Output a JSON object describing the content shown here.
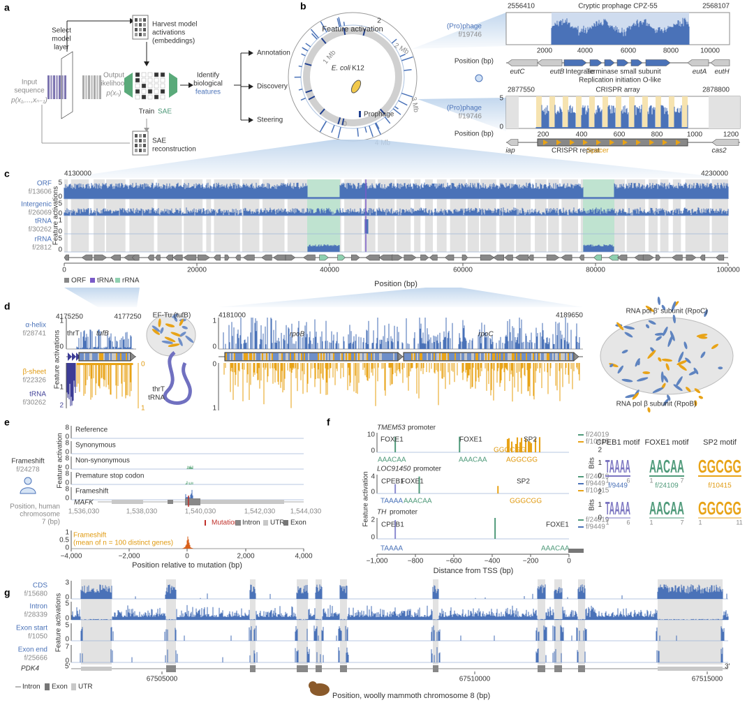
{
  "a": {
    "label": "a",
    "select_layer": [
      "Select",
      "model",
      "layer"
    ],
    "harvest": [
      "Harvest model",
      "activations",
      "(embeddings)"
    ],
    "input": [
      "Input",
      "sequence"
    ],
    "input_formula": "p(x₁,...,xₙ₋₁)",
    "output": [
      "Output",
      "likelihood"
    ],
    "output_formula": "p(xₙ)",
    "train": "Train",
    "sae": "SAE",
    "identify": [
      "Identify",
      "biological",
      "features"
    ],
    "outputs": [
      "Annotation",
      "Discovery",
      "Steering"
    ],
    "reconstruction": [
      "SAE",
      "reconstruction"
    ]
  },
  "b": {
    "label": "b",
    "circle_title": "Feature activation",
    "circle_max": "2",
    "circle_min": "0",
    "genome_ticks": [
      "1 Mb",
      "2 Mb",
      "3 Mb",
      "4 Mb"
    ],
    "organism": "E. coli",
    "strain": "K12",
    "prophage_legend": "Prophage",
    "top": {
      "feature": "(Pro)phage",
      "feature_id": "f/19746",
      "start": "2556410",
      "end": "2568107",
      "title": "Cryptic prophage CPZ-55",
      "xticks": [
        "2000",
        "4000",
        "6000",
        "8000",
        "10000"
      ],
      "xlabel": "Position (bp)",
      "genes": [
        "eutC",
        "eutB",
        "Integrase",
        "Terminase small subunit",
        "Replication initiation O-like",
        "eutA",
        "eutH"
      ]
    },
    "bottom": {
      "feature": "(Pro)phage",
      "feature_id": "f/19746",
      "start": "2877550",
      "end": "2878800",
      "title": "CRISPR array",
      "yticks": [
        "5",
        "0"
      ],
      "xticks": [
        "200",
        "400",
        "600",
        "800",
        "1000",
        "1200"
      ],
      "xlabel": "Position (bp)",
      "genes": [
        "iap",
        "CRISPR repeat",
        "Spacer",
        "cas2"
      ]
    }
  },
  "c": {
    "label": "c",
    "start": "4130000",
    "end": "4230000",
    "ylabel": "Feature activations",
    "tracks": [
      {
        "name": "ORF",
        "id": "f/13606",
        "ticks": [
          "5",
          "0"
        ]
      },
      {
        "name": "Intergenic",
        "id": "f/26069",
        "ticks": [
          "5",
          "0"
        ]
      },
      {
        "name": "tRNA",
        "id": "f/30262",
        "ticks": [
          "1",
          "0"
        ]
      },
      {
        "name": "rRNA",
        "id": "f/2812",
        "ticks": [
          "5",
          "0"
        ]
      }
    ],
    "xticks": [
      "0",
      "20000",
      "40000",
      "60000",
      "80000",
      "100000"
    ],
    "xlabel": "Position (bp)",
    "legend": [
      "ORF",
      "tRNA",
      "rRNA"
    ]
  },
  "d": {
    "label": "d",
    "ylabel": "Feature activations",
    "left": {
      "start": "4175250",
      "end": "4177250",
      "genes": [
        "thrT",
        "tufB"
      ],
      "tracks": [
        {
          "name": "α-helix",
          "id": "f/28741"
        },
        {
          "name": "β-sheet",
          "id": "f/22326"
        },
        {
          "name": "tRNA",
          "id": "f/30262"
        }
      ],
      "ticks_top": [
        "1",
        "0"
      ],
      "ticks_trna": [
        "1",
        "2"
      ],
      "ticks_sheet": [
        "0",
        "1"
      ]
    },
    "structure": {
      "title": "EF-Tu (tufB)",
      "rna": [
        "thrT",
        "tRNA"
      ]
    },
    "middle": {
      "start": "4181000",
      "end": "4189650",
      "genes": [
        "rpoB",
        "rpoC"
      ],
      "ticks_top": [
        "1",
        "0"
      ],
      "ticks_bottom": [
        "0",
        "1"
      ]
    },
    "right": {
      "top": "RNA pol β′ subunit (RpoC)",
      "bottom": "RNA pol β subunit (RpoB)"
    }
  },
  "e": {
    "label": "e",
    "ylabel": "Feature activation",
    "rows": [
      "Reference",
      "Synonymous",
      "Non-synonymous",
      "Premature stop codon",
      "Frameshift"
    ],
    "row_ticks": [
      "8",
      "0"
    ],
    "feature": "Frameshift",
    "feature_id": "f/24278",
    "position": [
      "Position, human",
      "chromosome",
      "7 (bp)"
    ],
    "gene": "MAFK",
    "xticks": [
      "1,536,030",
      "1,538,030",
      "1,540,030",
      "1,542,030",
      "1,544,030"
    ],
    "legend": [
      "Mutation",
      "Intron",
      "UTR",
      "Exon"
    ],
    "mean": {
      "title": "Frameshift",
      "subtitle": "(mean of n = 100 distinct genes)",
      "ticks": [
        "1",
        "0.5",
        "0"
      ],
      "xticks": [
        "−4,000",
        "−2,000",
        "0",
        "2,000",
        "4,000"
      ],
      "xlabel": "Position relative to mutation (bp)"
    }
  },
  "f": {
    "label": "f",
    "ylabel": "Feature activation",
    "promoters": [
      {
        "gene": "TMEM53",
        "suffix": "promoter",
        "ticks": [
          "10",
          "0"
        ],
        "labels": [
          "FOXE1",
          "FOXE1",
          "SP2"
        ],
        "motifs": [
          "AAACAA",
          "AAACAA",
          "AGGCGG",
          "GGGCGG"
        ],
        "legend": [
          "f/24019",
          "f/10415"
        ]
      },
      {
        "gene": "LOC91450",
        "suffix": "promoter",
        "ticks": [
          "4",
          "0"
        ],
        "labels": [
          "CPEB1",
          "FOXE1",
          "SP2"
        ],
        "motifs": [
          "TAAAA",
          "AAACAA",
          "GGGCGG"
        ],
        "legend": [
          "f/24019",
          "f/9449",
          "f/10415"
        ]
      },
      {
        "gene": "TH",
        "suffix": "promoter",
        "ticks": [
          "2",
          "0"
        ],
        "labels": [
          "CPEB1",
          "FOXE1"
        ],
        "motifs": [
          "TAAAA",
          "AAACAA"
        ],
        "legend": [
          "f/24019",
          "f/9449"
        ]
      }
    ],
    "xticks": [
      "−1,000",
      "−800",
      "−600",
      "−400",
      "−200",
      "0"
    ],
    "xlabel": "Distance from TSS (bp)",
    "logos": {
      "titles": [
        "CPEB1 motif",
        "FOXE1 motif",
        "SP2 motif"
      ],
      "ylabel": "Bits",
      "yticks": [
        "2",
        "1",
        "0"
      ],
      "ids": [
        "f/9449",
        "f/24109",
        "f/10415"
      ],
      "letters": [
        "TAAAA",
        "AACAA",
        "GGCGG"
      ],
      "top_xticks": [
        [
          "1",
          "6"
        ],
        [
          "1",
          "7"
        ]
      ],
      "bottom_xticks": [
        [
          "1",
          "6"
        ],
        [
          "1",
          "7"
        ],
        [
          "1",
          "11"
        ]
      ]
    }
  },
  "g": {
    "label": "g",
    "ylabel": "Feature activations",
    "tracks": [
      {
        "name": "CDS",
        "id": "f/15680",
        "ticks": [
          "3",
          "0"
        ]
      },
      {
        "name": "Intron",
        "id": "f/28339",
        "ticks": [
          "5",
          "0"
        ]
      },
      {
        "name": "Exon start",
        "id": "f/1050",
        "ticks": [
          "5",
          "0"
        ]
      },
      {
        "name": "Exon end",
        "id": "f/25666",
        "ticks": [
          "7",
          "0"
        ]
      }
    ],
    "gene": "PDK4",
    "five": "5′",
    "three": "3′",
    "xticks": [
      "67505000",
      "67510000",
      "67515000"
    ],
    "legend": [
      "Intron",
      "Exon",
      "UTR"
    ],
    "xlabel": "Position, woolly mammoth chromosome 8 (bp)"
  }
}
